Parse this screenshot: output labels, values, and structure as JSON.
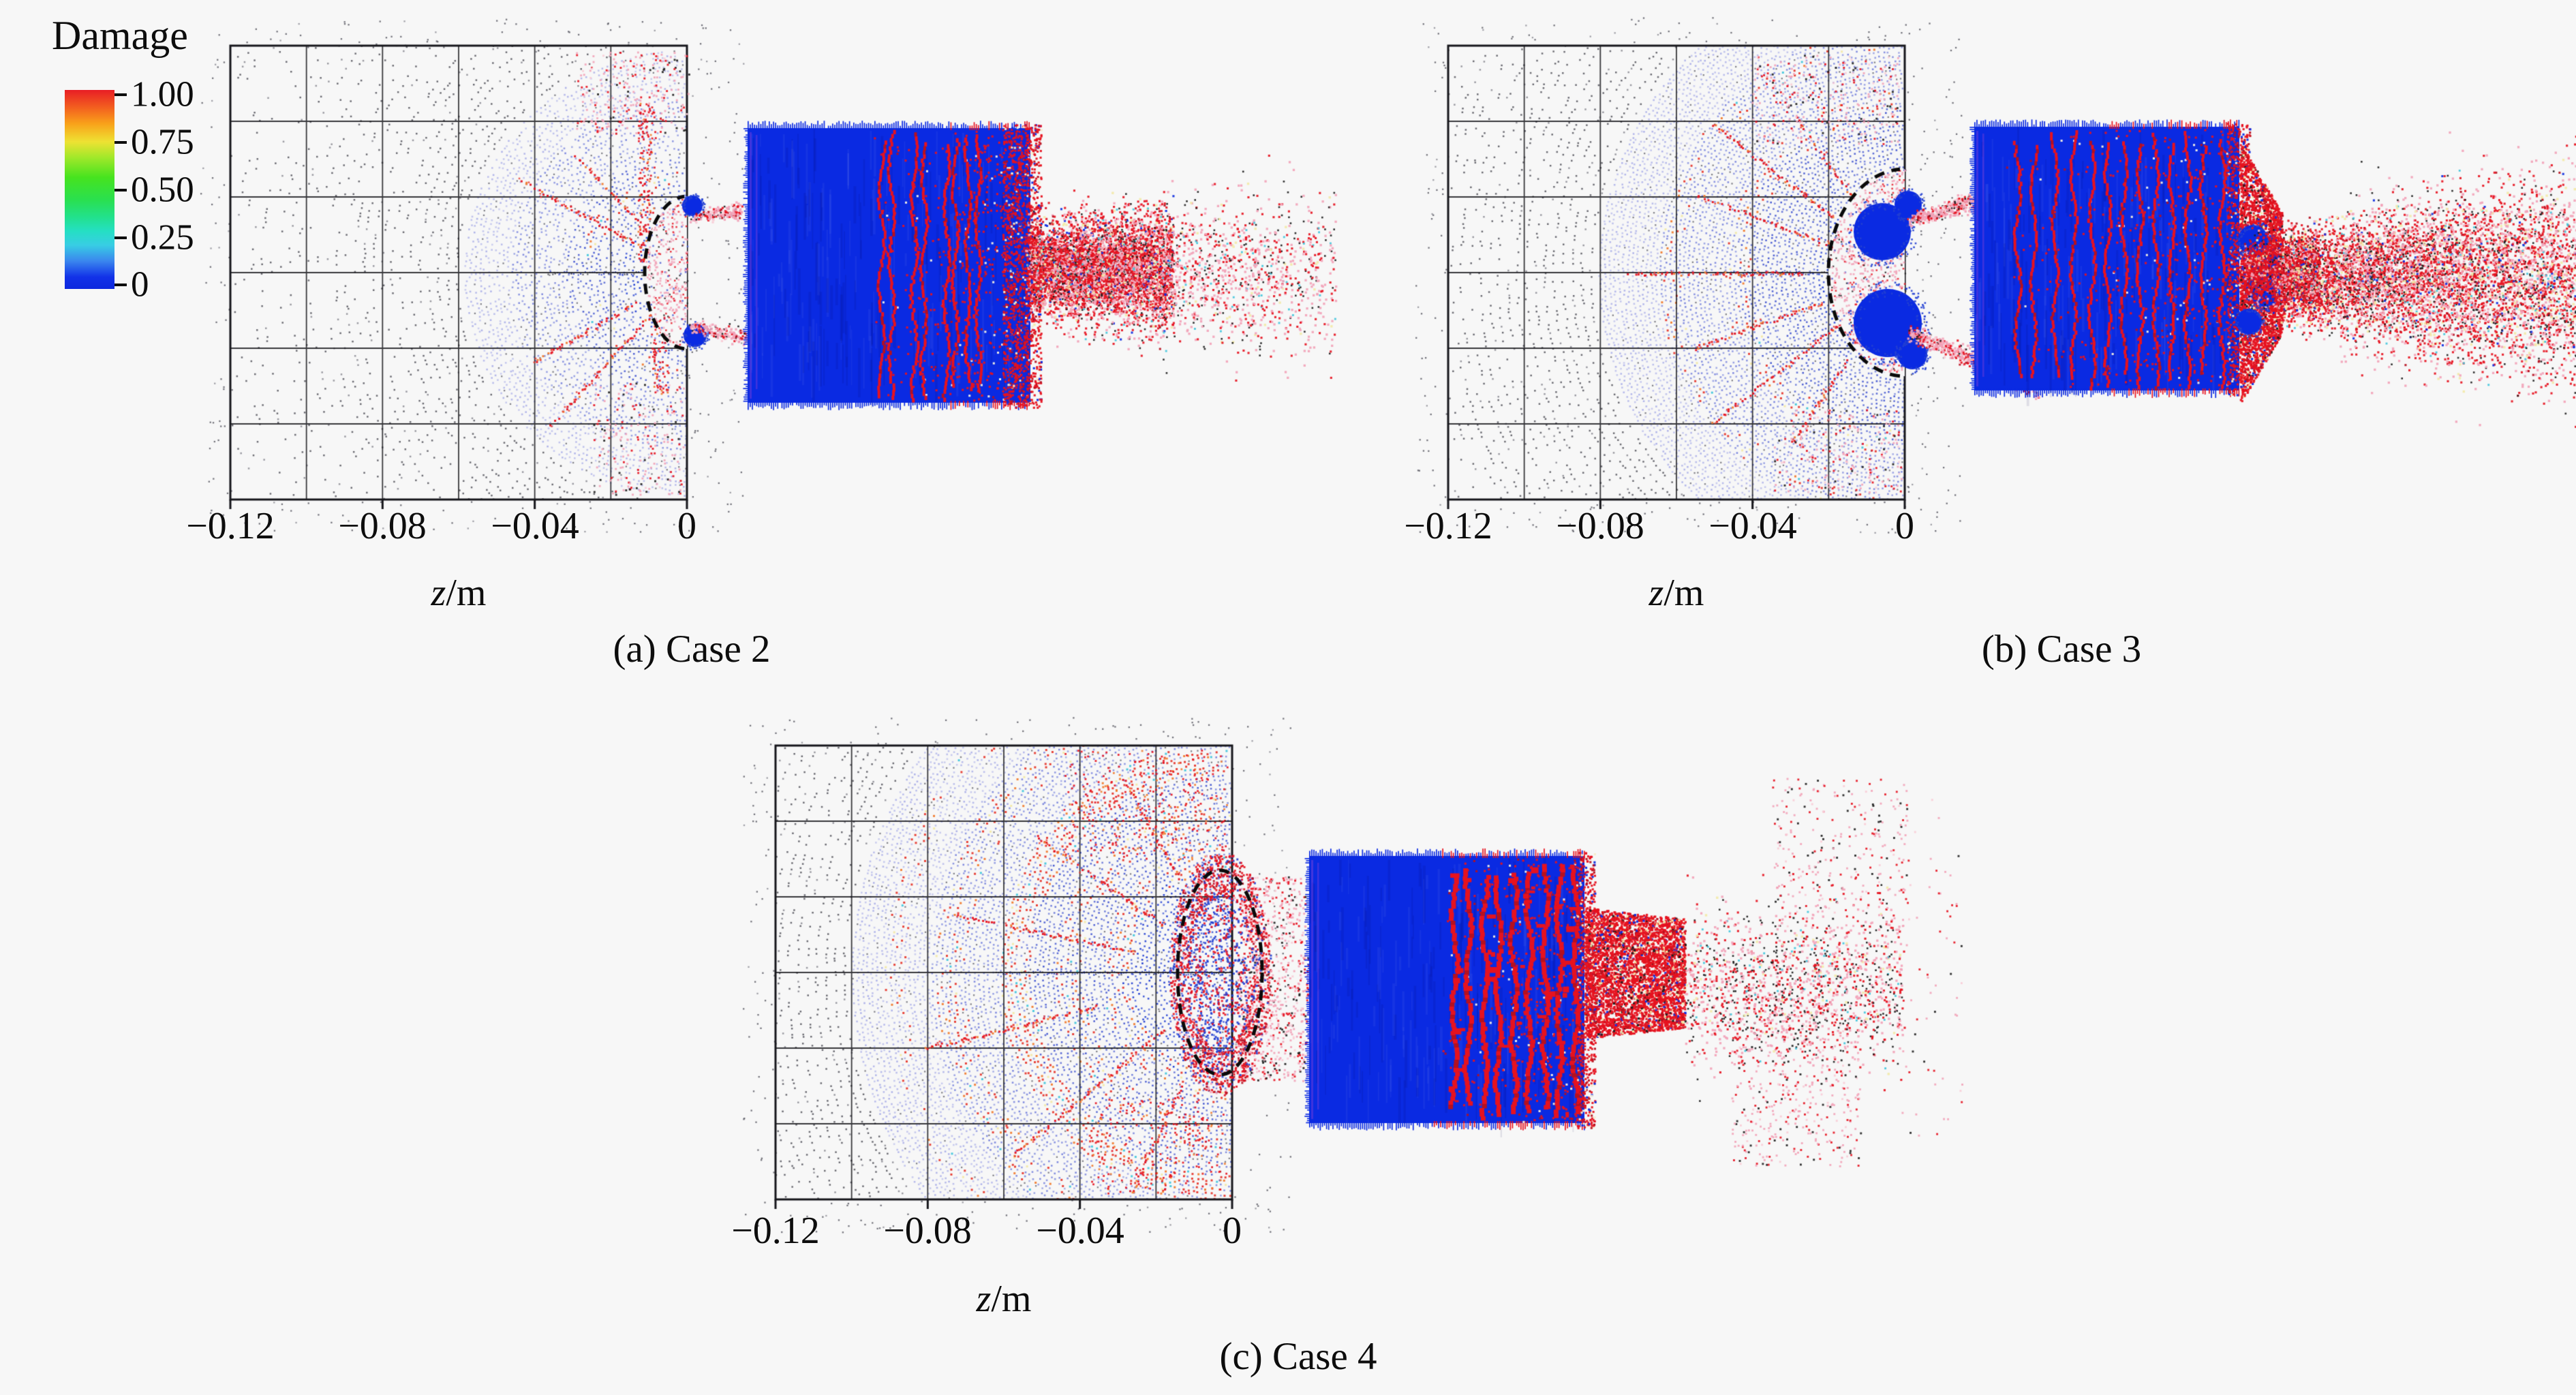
{
  "colorbar": {
    "title": "Damage",
    "ticks": [
      "1.00",
      "0.75",
      "0.50",
      "0.25",
      "0"
    ],
    "gradient": [
      "#e81e25 0%",
      "#f3611f 9%",
      "#f9a21a 17%",
      "#eee233 26%",
      "#a0e82a 34%",
      "#46e31f 44%",
      "#2ae04e 55%",
      "#22e18d 64%",
      "#25dfc4 71%",
      "#38cde4 78%",
      "#3a86ee 86%",
      "#1232e8 94%",
      "#0d28de 100%"
    ]
  },
  "panels": [
    {
      "caption": "(a) Case 2",
      "xlabel_var": "z",
      "xlabel_unit": "/m",
      "ticks": [
        "−0.12",
        "−0.08",
        "−0.04",
        "0"
      ]
    },
    {
      "caption": "(b) Case 3",
      "xlabel_var": "z",
      "xlabel_unit": "/m",
      "ticks": [
        "−0.12",
        "−0.08",
        "−0.04",
        "0"
      ]
    },
    {
      "caption": "(c) Case 4",
      "xlabel_var": "z",
      "xlabel_unit": "/m",
      "ticks": [
        "−0.12",
        "−0.08",
        "−0.04",
        "0"
      ]
    }
  ],
  "chart_data": {
    "type": "scatter",
    "grid": true,
    "colorbar": {
      "title": "Damage",
      "min": 0,
      "max": 1,
      "ticks": [
        1.0,
        0.75,
        0.5,
        0.25,
        0
      ],
      "position": "top-left",
      "colormap": "red(1)→orange→green→cyan→blue(0)"
    },
    "subplots": [
      {
        "caption": "(a) Case 2",
        "xlabel": "z/m",
        "x_ticks": [
          -0.12,
          -0.08,
          -0.04,
          0
        ],
        "x_range": [
          -0.12,
          0
        ],
        "grid_step": 0.02,
        "content": "SPH damage field: gridded target plate spanning z=-0.12..0 m with a blue (damage≈0) radial shock fan, a small dashed spall crater notch at the right face, red fracture specks near the crater; to the right a detached projectile slab (blue, damage≈0) with red fracture bands on its right half and a red/pink debris cloud expanding rightward."
      },
      {
        "caption": "(b) Case 3",
        "xlabel": "z/m",
        "x_ticks": [
          -0.12,
          -0.08,
          -0.04,
          0
        ],
        "x_range": [
          -0.12,
          0
        ],
        "grid_step": 0.02,
        "content": "Deeper dashed crater with blue fragment lips and two pink ejecta jets; dense blue shock fan fills the right half of the target with red radial cracks; projectile slab crossed by red fracture bands converging into a neck that feeds a wide red/pink/black debris cone reaching the image edge."
      },
      {
        "caption": "(c) Case 4",
        "xlabel": "z/m",
        "x_ticks": [
          -0.12,
          -0.08,
          -0.04,
          0
        ],
        "x_range": [
          -0.12,
          0
        ],
        "grid_step": 0.02,
        "content": "Extensive blue shock fan with red/orange circumferential damage arcs filling most of the target, dashed elliptical spall cavity at the right face surrounded by dense red debris; heavily fractured projectile slab (thick red crack bands), a solid red neck, and a sparse red/pink/black spray further right."
      }
    ]
  }
}
